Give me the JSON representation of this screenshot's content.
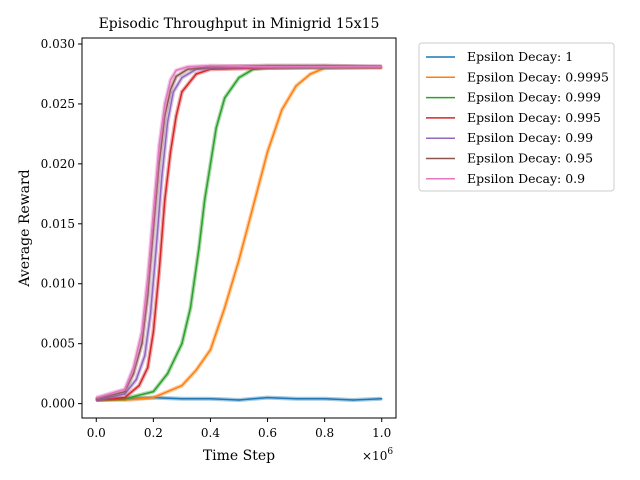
{
  "chart_data": {
    "type": "line",
    "title": "Episodic Throughput in Minigrid 15x15",
    "xlabel": "Time Step",
    "ylabel": "Average Reward",
    "x_multiplier_label": "×10",
    "x_multiplier_exp": "6",
    "xlim": [
      -0.05,
      1.05
    ],
    "ylim": [
      -0.0012,
      0.0305
    ],
    "x_ticks": [
      0.0,
      0.2,
      0.4,
      0.6,
      0.8,
      1.0
    ],
    "x_tick_labels": [
      "0.0",
      "0.2",
      "0.4",
      "0.6",
      "0.8",
      "1.0"
    ],
    "y_ticks": [
      0.0,
      0.005,
      0.01,
      0.015,
      0.02,
      0.025,
      0.03
    ],
    "y_tick_labels": [
      "0.000",
      "0.005",
      "0.010",
      "0.015",
      "0.020",
      "0.025",
      "0.030"
    ],
    "legend_position": "outside-right",
    "series": [
      {
        "name": "Epsilon Decay: 1",
        "color": "#1f77b4",
        "x": [
          0.0,
          0.1,
          0.2,
          0.3,
          0.4,
          0.5,
          0.6,
          0.7,
          0.8,
          0.9,
          1.0
        ],
        "y": [
          0.0004,
          0.0004,
          0.0005,
          0.0004,
          0.0004,
          0.0003,
          0.0005,
          0.0004,
          0.0004,
          0.0003,
          0.0004
        ]
      },
      {
        "name": "Epsilon Decay: 0.9995",
        "color": "#ff7f0e",
        "x": [
          0.0,
          0.1,
          0.2,
          0.3,
          0.35,
          0.4,
          0.45,
          0.5,
          0.55,
          0.6,
          0.65,
          0.7,
          0.75,
          0.8,
          0.9,
          1.0
        ],
        "y": [
          0.0003,
          0.0003,
          0.0005,
          0.0015,
          0.0028,
          0.0045,
          0.008,
          0.012,
          0.0165,
          0.021,
          0.0245,
          0.0265,
          0.0275,
          0.028,
          0.028,
          0.028
        ]
      },
      {
        "name": "Epsilon Decay: 0.999",
        "color": "#2ca02c",
        "x": [
          0.0,
          0.1,
          0.2,
          0.25,
          0.3,
          0.33,
          0.36,
          0.38,
          0.4,
          0.42,
          0.45,
          0.5,
          0.55,
          0.6,
          0.8,
          1.0
        ],
        "y": [
          0.0003,
          0.0004,
          0.001,
          0.0025,
          0.005,
          0.008,
          0.013,
          0.017,
          0.02,
          0.023,
          0.0255,
          0.0272,
          0.0279,
          0.028,
          0.028,
          0.0281
        ]
      },
      {
        "name": "Epsilon Decay: 0.995",
        "color": "#d62728",
        "x": [
          0.0,
          0.1,
          0.15,
          0.18,
          0.2,
          0.22,
          0.24,
          0.26,
          0.28,
          0.3,
          0.35,
          0.4,
          0.6,
          0.8,
          1.0
        ],
        "y": [
          0.0003,
          0.0005,
          0.0015,
          0.003,
          0.006,
          0.011,
          0.017,
          0.021,
          0.024,
          0.026,
          0.0275,
          0.0279,
          0.028,
          0.0281,
          0.0281
        ]
      },
      {
        "name": "Epsilon Decay: 0.99",
        "color": "#9467bd",
        "x": [
          0.0,
          0.1,
          0.14,
          0.17,
          0.19,
          0.21,
          0.23,
          0.25,
          0.27,
          0.3,
          0.35,
          0.4,
          0.6,
          0.8,
          1.0
        ],
        "y": [
          0.0003,
          0.0008,
          0.002,
          0.004,
          0.0075,
          0.013,
          0.019,
          0.0235,
          0.026,
          0.0272,
          0.0279,
          0.028,
          0.0281,
          0.0281,
          0.0281
        ]
      },
      {
        "name": "Epsilon Decay: 0.95",
        "color": "#8c564b",
        "x": [
          0.0,
          0.1,
          0.13,
          0.16,
          0.18,
          0.2,
          0.22,
          0.24,
          0.26,
          0.28,
          0.32,
          0.4,
          0.6,
          0.8,
          1.0
        ],
        "y": [
          0.0004,
          0.001,
          0.0025,
          0.005,
          0.009,
          0.0145,
          0.02,
          0.024,
          0.0262,
          0.0273,
          0.0279,
          0.0281,
          0.0282,
          0.0282,
          0.0281
        ]
      },
      {
        "name": "Epsilon Decay: 0.9",
        "color": "#e377c2",
        "x": [
          0.0,
          0.1,
          0.13,
          0.16,
          0.18,
          0.2,
          0.22,
          0.24,
          0.26,
          0.28,
          0.32,
          0.4,
          0.6,
          0.8,
          1.0
        ],
        "y": [
          0.0005,
          0.0012,
          0.003,
          0.006,
          0.0105,
          0.016,
          0.0215,
          0.025,
          0.027,
          0.0278,
          0.0281,
          0.0282,
          0.0281,
          0.0281,
          0.0281
        ]
      }
    ]
  }
}
